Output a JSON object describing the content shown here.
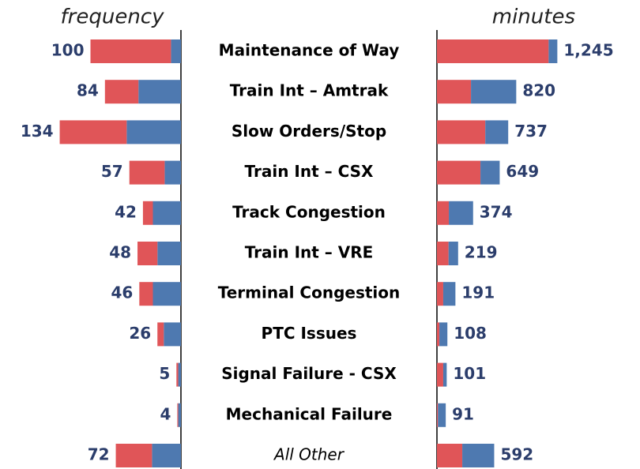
{
  "chart_data": [
    {
      "type": "bar",
      "orientation": "horizontal",
      "direction": "left",
      "axis_label": "frequency",
      "categories": [
        "Maintenance of Way",
        "Train Int – Amtrak",
        "Slow Orders/Stop",
        "Train Int – CSX",
        "Track Congestion",
        "Train Int – VRE",
        "Terminal Congestion",
        "PTC Issues",
        "Signal Failure - CSX",
        "Mechanical Failure",
        "All Other"
      ],
      "xlim": [
        0,
        200
      ],
      "series": [
        {
          "color": "#4e79b0",
          "values": [
            11,
            47,
            60,
            18,
            31,
            26,
            31,
            19,
            3,
            3,
            32
          ]
        },
        {
          "color": "#e05558",
          "values": [
            89,
            37,
            74,
            39,
            11,
            22,
            15,
            7,
            2,
            1,
            40
          ]
        }
      ],
      "totals": [
        100,
        84,
        134,
        57,
        42,
        48,
        46,
        26,
        5,
        4,
        72
      ]
    },
    {
      "type": "bar",
      "orientation": "horizontal",
      "direction": "right",
      "axis_label": "minutes",
      "xlim": [
        0,
        2100
      ],
      "series": [
        {
          "color": "#e05558",
          "values": [
            1155,
            352,
            500,
            450,
            123,
            120,
            65,
            25,
            65,
            10,
            262
          ]
        },
        {
          "color": "#4e79b0",
          "values": [
            90,
            468,
            237,
            199,
            251,
            99,
            126,
            83,
            36,
            81,
            330
          ]
        }
      ],
      "totals": [
        1245,
        820,
        737,
        649,
        374,
        219,
        191,
        108,
        101,
        91,
        592
      ],
      "total_labels": [
        "1,245",
        "820",
        "737",
        "649",
        "374",
        "219",
        "191",
        "108",
        "101",
        "91",
        "592"
      ]
    }
  ]
}
